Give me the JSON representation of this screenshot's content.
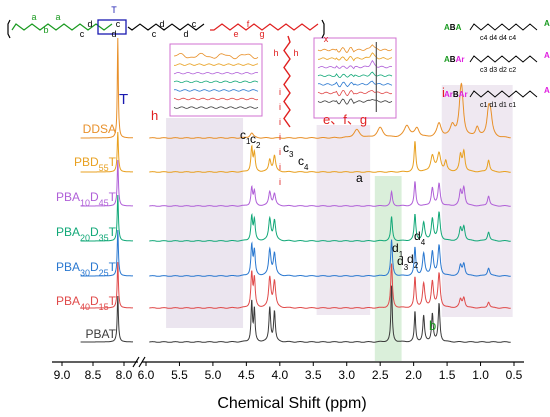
{
  "chart_data": {
    "type": "line",
    "x_axis": {
      "label": "Chemical Shift (ppm)",
      "left_segment_ticks": [
        "9.0",
        "8.5",
        "8.0"
      ],
      "right_segment_ticks": [
        "6.0",
        "5.5",
        "5.0",
        "4.5",
        "4.0",
        "3.5",
        "3.0",
        "2.5",
        "2.0",
        "1.5",
        "1.0",
        "0.5"
      ],
      "reversed": true,
      "broken": true,
      "left_range": [
        9.0,
        7.8
      ],
      "right_range": [
        6.0,
        0.5
      ]
    },
    "series": [
      {
        "name": "DDSA",
        "color": "#e8902a",
        "label_parts": [
          {
            "t": "DDSA",
            "sub": false
          }
        ]
      },
      {
        "name": "PBD55T",
        "color": "#e8a020",
        "label_parts": [
          {
            "t": "PBD",
            "sub": false
          },
          {
            "t": "55",
            "sub": true
          },
          {
            "t": "T",
            "sub": false
          }
        ]
      },
      {
        "name": "PBA10D45T",
        "color": "#b060d8",
        "label_parts": [
          {
            "t": "PBA",
            "sub": false
          },
          {
            "t": "10",
            "sub": true
          },
          {
            "t": "D",
            "sub": false
          },
          {
            "t": "45",
            "sub": true
          },
          {
            "t": "T",
            "sub": false
          }
        ]
      },
      {
        "name": "PBA20D35T",
        "color": "#12a878",
        "label_parts": [
          {
            "t": "PBA",
            "sub": false
          },
          {
            "t": "20",
            "sub": true
          },
          {
            "t": "D",
            "sub": false
          },
          {
            "t": "35",
            "sub": true
          },
          {
            "t": "T",
            "sub": false
          }
        ]
      },
      {
        "name": "PBA30D25T",
        "color": "#2a78d0",
        "label_parts": [
          {
            "t": "PBA",
            "sub": false
          },
          {
            "t": "30",
            "sub": true
          },
          {
            "t": "D",
            "sub": false
          },
          {
            "t": "25",
            "sub": true
          },
          {
            "t": "T",
            "sub": false
          }
        ]
      },
      {
        "name": "PBA40D15T",
        "color": "#e04a4a",
        "label_parts": [
          {
            "t": "PBA",
            "sub": false
          },
          {
            "t": "40",
            "sub": true
          },
          {
            "t": "D",
            "sub": false
          },
          {
            "t": "15",
            "sub": true
          },
          {
            "t": "T",
            "sub": false
          }
        ]
      },
      {
        "name": "PBAT",
        "color": "#3a3a3a",
        "label_parts": [
          {
            "t": "PBAT",
            "sub": false
          }
        ]
      }
    ],
    "peak_labels": [
      {
        "text": "T",
        "color": "#1a1ab0"
      },
      {
        "text": "h",
        "color": "#e02020"
      },
      {
        "text": "e、f、g",
        "color": "#e02020"
      },
      {
        "text": "i",
        "color": "#e02020"
      },
      {
        "text": "a",
        "color": "#000000"
      },
      {
        "text": "b",
        "color": "#1a9a20"
      },
      {
        "text": "c",
        "color": "#000000",
        "sub": "1"
      },
      {
        "text": "c",
        "color": "#000000",
        "sub": "2"
      },
      {
        "text": "c",
        "color": "#000000",
        "sub": "3"
      },
      {
        "text": "c",
        "color": "#000000",
        "sub": "4"
      },
      {
        "text": "d",
        "color": "#000000",
        "sub": "1"
      },
      {
        "text": "d",
        "color": "#000000",
        "sub": "2"
      },
      {
        "text": "d",
        "color": "#000000",
        "sub": "3"
      },
      {
        "text": "d",
        "color": "#000000",
        "sub": "4"
      }
    ],
    "highlight_regions": [
      {
        "name": "T-region",
        "color": "#e8e0ec"
      },
      {
        "name": "efg-region",
        "color": "#ece4ee"
      },
      {
        "name": "a-region",
        "color": "#d4ecd4"
      },
      {
        "name": "i-region",
        "color": "#ece4ee"
      }
    ],
    "structure": {
      "atom_labels": [
        "a",
        "b",
        "a",
        "c",
        "d",
        "d",
        "c",
        "T",
        "c",
        "d",
        "d",
        "c",
        "e",
        "f",
        "g",
        "h",
        "h",
        "i",
        "x"
      ],
      "sequence_labels": [
        {
          "prefix": "A",
          "mid": "B",
          "suffix": "A",
          "colors": [
            "#1a9a20",
            "#000000",
            "#1a9a20"
          ],
          "chain": [
            "c",
            "4",
            "d",
            "4",
            "d",
            "4",
            "c",
            "4"
          ]
        },
        {
          "prefix": "A",
          "mid": "B",
          "suffix": "Ar",
          "colors": [
            "#1a9a20",
            "#000000",
            "#e020e0"
          ],
          "chain": [
            "c",
            "3",
            "d",
            "3",
            "d",
            "2",
            "c",
            "2"
          ]
        },
        {
          "prefix": "Ar",
          "mid": "B",
          "suffix": "Ar",
          "colors": [
            "#e020e0",
            "#000000",
            "#e020e0"
          ],
          "chain": [
            "c",
            "1",
            "d",
            "1",
            "d",
            "1",
            "c",
            "1"
          ]
        }
      ]
    }
  }
}
